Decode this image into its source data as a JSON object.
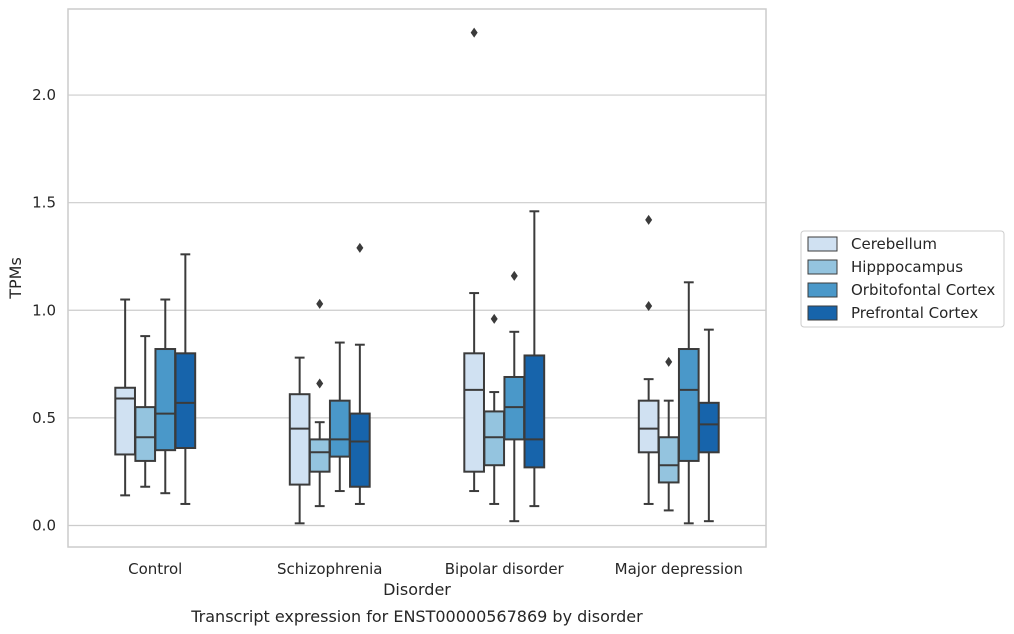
{
  "chart_data": {
    "type": "box",
    "caption": "Transcript expression for ENST00000567869 by disorder",
    "xlabel": "Disorder",
    "ylabel": "TPMs",
    "ylim": [
      -0.1,
      2.4
    ],
    "yticks": [
      "0.0",
      "0.5",
      "1.0",
      "1.5",
      "2.0"
    ],
    "ytick_values": [
      0.0,
      0.5,
      1.0,
      1.5,
      2.0
    ],
    "grid": "horizontal",
    "legend_position": "right",
    "categories": [
      "Control",
      "Schizophrenia",
      "Bipolar disorder",
      "Major depression"
    ],
    "series": [
      {
        "name": "Cerebellum",
        "color": "#d0e1f2",
        "boxes": [
          {
            "whislo": 0.14,
            "q1": 0.33,
            "med": 0.59,
            "q3": 0.64,
            "whishi": 1.05,
            "fliers": []
          },
          {
            "whislo": 0.01,
            "q1": 0.19,
            "med": 0.45,
            "q3": 0.61,
            "whishi": 0.78,
            "fliers": []
          },
          {
            "whislo": 0.16,
            "q1": 0.25,
            "med": 0.63,
            "q3": 0.8,
            "whishi": 1.08,
            "fliers": [
              2.29
            ]
          },
          {
            "whislo": 0.1,
            "q1": 0.34,
            "med": 0.45,
            "q3": 0.58,
            "whishi": 0.68,
            "fliers": [
              1.02,
              1.42
            ]
          }
        ]
      },
      {
        "name": "Hipppocampus",
        "color": "#94c4df",
        "boxes": [
          {
            "whislo": 0.18,
            "q1": 0.3,
            "med": 0.41,
            "q3": 0.55,
            "whishi": 0.88,
            "fliers": []
          },
          {
            "whislo": 0.09,
            "q1": 0.25,
            "med": 0.34,
            "q3": 0.4,
            "whishi": 0.48,
            "fliers": [
              0.66,
              1.03
            ]
          },
          {
            "whislo": 0.1,
            "q1": 0.28,
            "med": 0.41,
            "q3": 0.53,
            "whishi": 0.62,
            "fliers": [
              0.96
            ]
          },
          {
            "whislo": 0.07,
            "q1": 0.2,
            "med": 0.28,
            "q3": 0.41,
            "whishi": 0.58,
            "fliers": [
              0.76
            ]
          }
        ]
      },
      {
        "name": "Orbitofontal Cortex",
        "color": "#4a98c9",
        "boxes": [
          {
            "whislo": 0.15,
            "q1": 0.35,
            "med": 0.52,
            "q3": 0.82,
            "whishi": 1.05,
            "fliers": []
          },
          {
            "whislo": 0.16,
            "q1": 0.32,
            "med": 0.4,
            "q3": 0.58,
            "whishi": 0.85,
            "fliers": []
          },
          {
            "whislo": 0.02,
            "q1": 0.4,
            "med": 0.55,
            "q3": 0.69,
            "whishi": 0.9,
            "fliers": [
              1.16
            ]
          },
          {
            "whislo": 0.01,
            "q1": 0.3,
            "med": 0.63,
            "q3": 0.82,
            "whishi": 1.13,
            "fliers": []
          }
        ]
      },
      {
        "name": "Prefrontal Cortex",
        "color": "#1764ab",
        "boxes": [
          {
            "whislo": 0.1,
            "q1": 0.36,
            "med": 0.57,
            "q3": 0.8,
            "whishi": 1.26,
            "fliers": []
          },
          {
            "whislo": 0.1,
            "q1": 0.18,
            "med": 0.39,
            "q3": 0.52,
            "whishi": 0.84,
            "fliers": [
              1.29
            ]
          },
          {
            "whislo": 0.09,
            "q1": 0.27,
            "med": 0.4,
            "q3": 0.79,
            "whishi": 1.46,
            "fliers": []
          },
          {
            "whislo": 0.02,
            "q1": 0.34,
            "med": 0.47,
            "q3": 0.57,
            "whishi": 0.91,
            "fliers": []
          }
        ]
      }
    ]
  }
}
